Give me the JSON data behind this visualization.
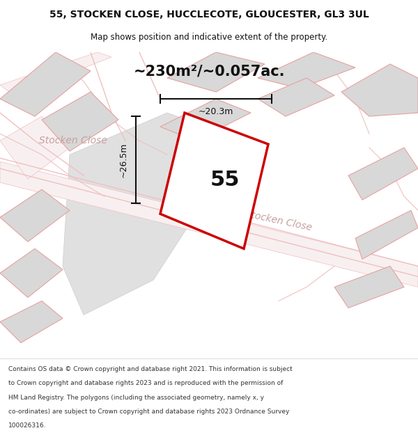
{
  "title_line1": "55, STOCKEN CLOSE, HUCCLECOTE, GLOUCESTER, GL3 3UL",
  "title_line2": "Map shows position and indicative extent of the property.",
  "area_label": "~230m²/~0.057ac.",
  "plot_number": "55",
  "dim_height": "~26.5m",
  "dim_width": "~20.3m",
  "footer_lines": [
    "Contains OS data © Crown copyright and database right 2021. This information is subject",
    "to Crown copyright and database rights 2023 and is reproduced with the permission of",
    "HM Land Registry. The polygons (including the associated geometry, namely x, y",
    "co-ordinates) are subject to Crown copyright and database rights 2023 Ordnance Survey",
    "100026316."
  ],
  "map_bg": "#f2f2f2",
  "road_color": "#f0c0c0",
  "plot_outline_color": "#cc0000",
  "building_fill": "#d8d8d8",
  "building_outline": "#e8a0a0",
  "dim_line_color": "#111111",
  "text_color": "#111111",
  "road_label_color": "#c8a0a0",
  "white": "#ffffff"
}
